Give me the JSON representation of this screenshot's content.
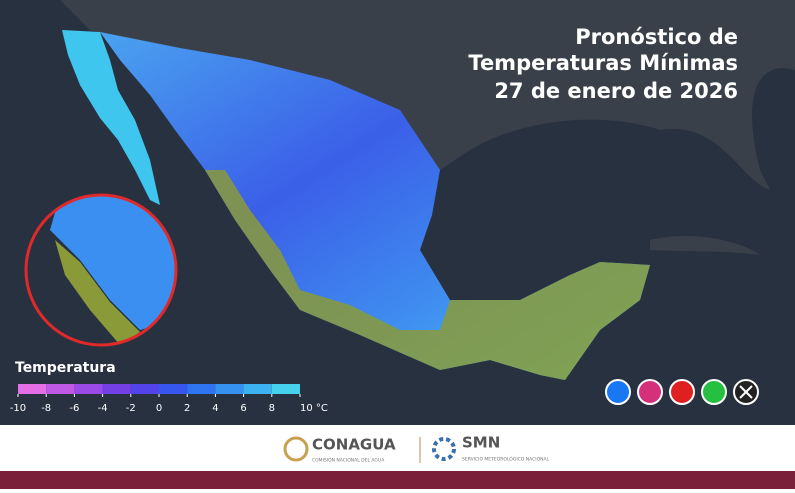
{
  "title": {
    "lines": [
      "Pronóstico de",
      "Temperaturas Mínimas",
      "27 de enero de 2026"
    ]
  },
  "legend": {
    "title": "Temperatura",
    "ticks": [
      -10,
      -8,
      -6,
      -4,
      -2,
      0,
      2,
      4,
      6,
      8,
      {
        "value": 10,
        "label": "10 °C"
      }
    ],
    "colors": [
      "#e46ee6",
      "#c05ae6",
      "#9a4ae6",
      "#7440e6",
      "#5244e8",
      "#3656ee",
      "#2f74f0",
      "#3692f0",
      "#3cb2f0",
      "#46d2ee"
    ]
  },
  "footer": {
    "conagua": "CONAGUA",
    "conagua_sub": "COMISIÓN NACIONAL DEL AGUA",
    "smn": "SMN",
    "smn_sub": "SERVICIO METEOROLÓGICO NACIONAL"
  }
}
